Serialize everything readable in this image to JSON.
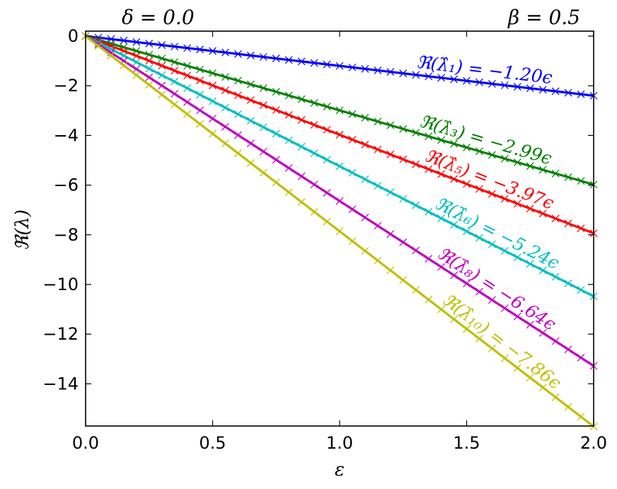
{
  "chart_data": {
    "type": "line",
    "title": "",
    "xlabel": "ε",
    "ylabel": "ℜ(λ)",
    "xlim": [
      0.0,
      2.0
    ],
    "ylim": [
      -15.7,
      0.2
    ],
    "grid": false,
    "xticks": [
      0.0,
      0.5,
      1.0,
      1.5,
      2.0
    ],
    "xtick_labels": [
      "0.0",
      "0.5",
      "1.0",
      "1.5",
      "2.0"
    ],
    "yticks": [
      0,
      -2,
      -4,
      -6,
      -8,
      -10,
      -12,
      -14
    ],
    "ytick_labels": [
      "0",
      "−2",
      "−4",
      "−6",
      "−8",
      "−10",
      "−12",
      "−14"
    ],
    "corner_labels": {
      "left": "δ = 0.0",
      "right": "β = 0.5"
    },
    "x": [
      0.0,
      2.0
    ],
    "series": [
      {
        "color": "#0000ff",
        "slope": -1.2,
        "values": [
          0.0,
          -2.4
        ],
        "label": "ℜ(λ̂₁) = −1.20ϵ"
      },
      {
        "color": "#008000",
        "slope": -2.99,
        "values": [
          0.0,
          -5.98
        ],
        "label": "ℜ(λ̂₃) = −2.99ϵ"
      },
      {
        "color": "#ff0000",
        "slope": -3.97,
        "values": [
          0.0,
          -7.94
        ],
        "label": "ℜ(λ̂₅) = −3.97ϵ"
      },
      {
        "color": "#00bfbf",
        "slope": -5.24,
        "values": [
          0.0,
          -10.48
        ],
        "label": "ℜ(λ̂₆) = −5.24ϵ"
      },
      {
        "color": "#bf00bf",
        "slope": -6.64,
        "values": [
          0.0,
          -13.28
        ],
        "label": "ℜ(λ̂₈) = −6.64ϵ"
      },
      {
        "color": "#bfbf00",
        "slope": -7.86,
        "values": [
          0.0,
          -15.72
        ],
        "label": "ℜ(λ̂₁₀) = −7.86ϵ"
      }
    ],
    "markers": {
      "shape": "x",
      "count": 41
    }
  }
}
